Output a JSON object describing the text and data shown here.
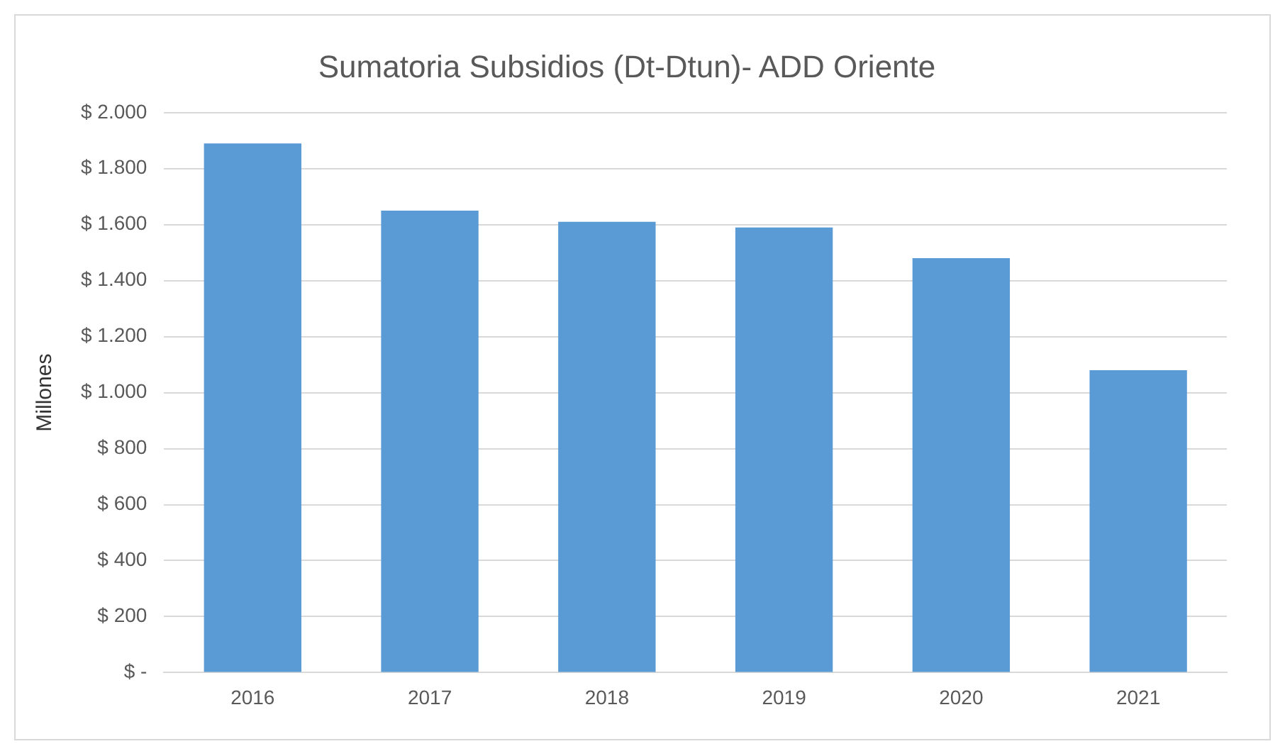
{
  "chart_data": {
    "type": "bar",
    "title": "Sumatoria Subsidios (Dt-Dtun)- ADD Oriente",
    "ylabel": "Millones",
    "categories": [
      "2016",
      "2017",
      "2018",
      "2019",
      "2020",
      "2021"
    ],
    "values": [
      1890,
      1650,
      1610,
      1590,
      1480,
      1080
    ],
    "color": "#5b9bd5",
    "ylim": [
      0,
      2000
    ],
    "yticks": [
      {
        "value": 0,
        "label": "$ -"
      },
      {
        "value": 200,
        "label": "$ 200"
      },
      {
        "value": 400,
        "label": "$ 400"
      },
      {
        "value": 600,
        "label": "$ 600"
      },
      {
        "value": 800,
        "label": "$ 800"
      },
      {
        "value": 1000,
        "label": "$ 1.000"
      },
      {
        "value": 1200,
        "label": "$ 1.200"
      },
      {
        "value": 1400,
        "label": "$ 1.400"
      },
      {
        "value": 1600,
        "label": "$ 1.600"
      },
      {
        "value": 1800,
        "label": "$ 1.800"
      },
      {
        "value": 2000,
        "label": "$ 2.000"
      }
    ],
    "grid": "y",
    "legend": false
  }
}
